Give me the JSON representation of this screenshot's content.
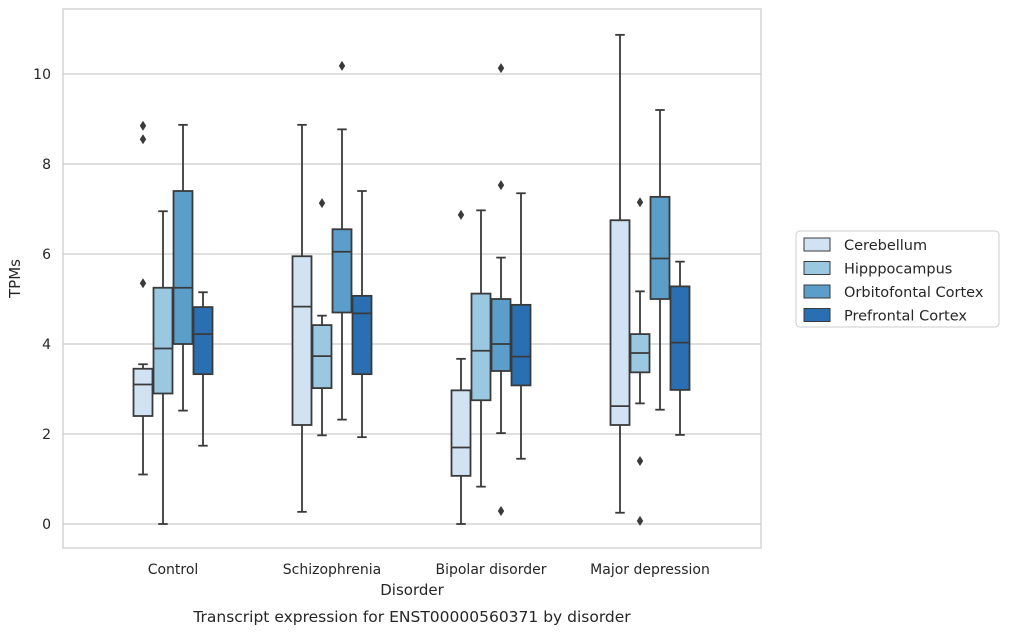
{
  "chart_data": {
    "type": "box",
    "title": "",
    "caption": "Transcript expression for ENST00000560371 by disorder",
    "xlabel": "Disorder",
    "ylabel": "TPMs",
    "ylim": [
      -0.5,
      11.4
    ],
    "yticks": [
      0,
      2,
      4,
      6,
      8,
      10
    ],
    "grid": "y",
    "legend_position": "right",
    "categories": [
      "Control",
      "Schizophrenia",
      "Bipolar disorder",
      "Major depression"
    ],
    "series": [
      {
        "name": "Cerebellum",
        "color": "#d1e2f2",
        "boxes": [
          {
            "whisker_low": 1.1,
            "q1": 2.4,
            "median": 3.1,
            "q3": 3.45,
            "whisker_high": 3.55,
            "outliers": [
              8.55,
              8.85,
              5.35
            ]
          },
          {
            "whisker_low": 0.27,
            "q1": 2.2,
            "median": 4.83,
            "q3": 5.95,
            "whisker_high": 8.87,
            "outliers": []
          },
          {
            "whisker_low": 0.0,
            "q1": 1.07,
            "median": 1.7,
            "q3": 2.97,
            "whisker_high": 3.67,
            "outliers": [
              6.87
            ]
          },
          {
            "whisker_low": 0.25,
            "q1": 2.2,
            "median": 2.62,
            "q3": 6.75,
            "whisker_high": 10.87,
            "outliers": []
          }
        ]
      },
      {
        "name": "Hipppocampus",
        "color": "#9ac8e0",
        "boxes": [
          {
            "whisker_low": 0.0,
            "q1": 2.9,
            "median": 3.9,
            "q3": 5.25,
            "whisker_high": 6.95,
            "outliers": []
          },
          {
            "whisker_low": 1.97,
            "q1": 3.02,
            "median": 3.73,
            "q3": 4.42,
            "whisker_high": 4.63,
            "outliers": [
              7.13
            ]
          },
          {
            "whisker_low": 0.83,
            "q1": 2.75,
            "median": 3.85,
            "q3": 5.12,
            "whisker_high": 6.97,
            "outliers": []
          },
          {
            "whisker_low": 2.68,
            "q1": 3.37,
            "median": 3.8,
            "q3": 4.22,
            "whisker_high": 5.17,
            "outliers": [
              7.15,
              1.4,
              0.07
            ]
          }
        ]
      },
      {
        "name": "Orbitofontal Cortex",
        "color": "#5b9ec9",
        "boxes": [
          {
            "whisker_low": 2.52,
            "q1": 4.0,
            "median": 5.25,
            "q3": 7.4,
            "whisker_high": 8.87,
            "outliers": []
          },
          {
            "whisker_low": 2.32,
            "q1": 4.7,
            "median": 6.05,
            "q3": 6.55,
            "whisker_high": 8.77,
            "outliers": [
              10.18
            ]
          },
          {
            "whisker_low": 2.02,
            "q1": 3.4,
            "median": 4.0,
            "q3": 5.0,
            "whisker_high": 5.92,
            "outliers": [
              10.13,
              7.53,
              0.29
            ]
          },
          {
            "whisker_low": 2.54,
            "q1": 5.0,
            "median": 5.9,
            "q3": 7.27,
            "whisker_high": 9.2,
            "outliers": []
          }
        ]
      },
      {
        "name": "Prefrontal Cortex",
        "color": "#2a6fb2",
        "boxes": [
          {
            "whisker_low": 1.74,
            "q1": 3.33,
            "median": 4.22,
            "q3": 4.82,
            "whisker_high": 5.15,
            "outliers": []
          },
          {
            "whisker_low": 1.93,
            "q1": 3.33,
            "median": 4.68,
            "q3": 5.07,
            "whisker_high": 7.4,
            "outliers": []
          },
          {
            "whisker_low": 1.45,
            "q1": 3.08,
            "median": 3.72,
            "q3": 4.87,
            "whisker_high": 7.35,
            "outliers": []
          },
          {
            "whisker_low": 1.98,
            "q1": 2.98,
            "median": 4.03,
            "q3": 5.28,
            "whisker_high": 5.83,
            "outliers": []
          }
        ]
      }
    ]
  }
}
